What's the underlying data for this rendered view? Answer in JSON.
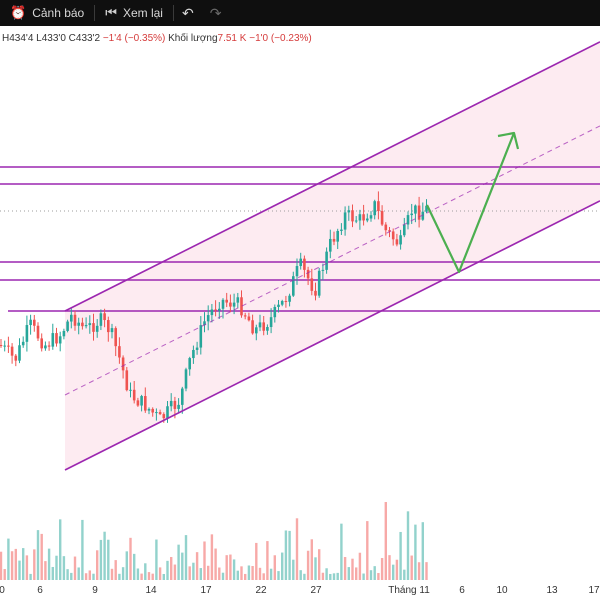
{
  "toolbar": {
    "alert_label": "Cảnh báo",
    "replay_label": "Xem lại"
  },
  "ohlc": {
    "high": "H434'4",
    "low": "L433'0",
    "close": "C433'2",
    "change": "−1'4 (−0.35%)",
    "volume_label": "Khối lượng",
    "volume_value": "7.51 K",
    "volume_change": "−1'0 (−0.23%)"
  },
  "colors": {
    "up": "#26a69a",
    "down": "#ef5350",
    "channel": "#9c27b0",
    "channel_fill": "#fce4ec",
    "arrow": "#4caf50"
  },
  "x_axis_labels": [
    "0",
    "6",
    "9",
    "14",
    "17",
    "22",
    "27",
    "Tháng 11",
    "6",
    "10",
    "13",
    "17"
  ]
}
